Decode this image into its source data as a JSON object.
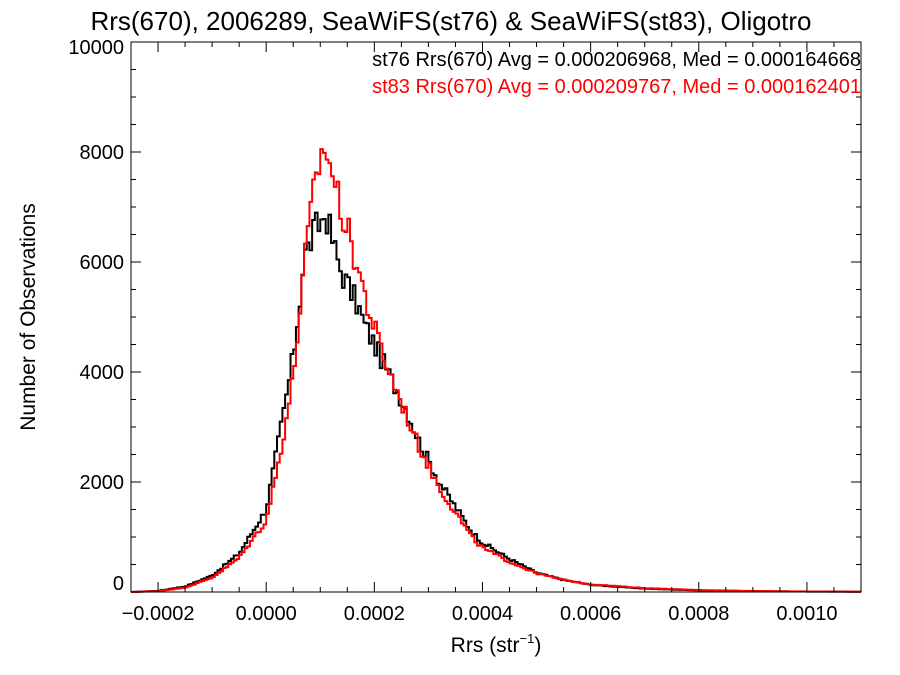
{
  "chart_data": {
    "type": "line",
    "title": "Rrs(670), 2006289, SeaWiFS(st76) & SeaWiFS(st83), Oligotro",
    "xlabel_main": "Rrs (str",
    "xlabel_sup": "−1",
    "xlabel_end": ")",
    "ylabel": "Number of Observations",
    "xlim": [
      -0.00025,
      0.0011
    ],
    "ylim": [
      0,
      10000
    ],
    "x_ticks": [
      -0.0002,
      0.0,
      0.0002,
      0.0004,
      0.0006,
      0.0008,
      0.001
    ],
    "x_tick_labels": [
      "−0.0002",
      "0.0000",
      "0.0002",
      "0.0004",
      "0.0006",
      "0.0008",
      "0.0010"
    ],
    "y_ticks": [
      0,
      2000,
      4000,
      6000,
      8000,
      10000
    ],
    "y_tick_labels": [
      "0",
      "2000",
      "4000",
      "6000",
      "8000",
      "10000"
    ],
    "grid": false,
    "legend_position": "top-right",
    "series": [
      {
        "name": "st76 Rrs(670) Avg = 0.000206968, Med = 0.000164668",
        "color": "#000000",
        "x": [
          -0.00025,
          -0.0002,
          -0.00015,
          -0.0001,
          -5e-05,
          0.0,
          2e-05,
          4e-05,
          5e-05,
          6e-05,
          7e-05,
          8e-05,
          9e-05,
          0.0001,
          0.00011,
          0.00012,
          0.00013,
          0.00014,
          0.00015,
          0.00016,
          0.00017,
          0.00018,
          0.00019,
          0.0002,
          0.00022,
          0.00024,
          0.00026,
          0.00028,
          0.0003,
          0.00032,
          0.00034,
          0.00036,
          0.00038,
          0.0004,
          0.00045,
          0.0005,
          0.00055,
          0.0006,
          0.0007,
          0.0008,
          0.0009,
          0.001,
          0.0011
        ],
        "y": [
          0,
          20,
          100,
          300,
          700,
          1500,
          2600,
          3700,
          4300,
          5100,
          6100,
          6300,
          6600,
          6700,
          6900,
          6500,
          6100,
          5800,
          5600,
          5400,
          5200,
          4900,
          4700,
          4500,
          4100,
          3700,
          3300,
          2800,
          2400,
          2000,
          1700,
          1400,
          1100,
          900,
          600,
          350,
          220,
          130,
          60,
          30,
          15,
          8,
          5
        ]
      },
      {
        "name": "st83 Rrs(670) Avg = 0.000209767, Med = 0.000162401",
        "color": "#ff0000",
        "x": [
          -0.00025,
          -0.0002,
          -0.00015,
          -0.0001,
          -5e-05,
          0.0,
          2e-05,
          4e-05,
          5e-05,
          6e-05,
          7e-05,
          8e-05,
          9e-05,
          0.0001,
          0.00011,
          0.00012,
          0.00013,
          0.00014,
          0.00015,
          0.00016,
          0.00017,
          0.00018,
          0.00019,
          0.0002,
          0.00022,
          0.00024,
          0.00026,
          0.00028,
          0.0003,
          0.00032,
          0.00034,
          0.00036,
          0.00038,
          0.0004,
          0.00045,
          0.0005,
          0.00055,
          0.0006,
          0.0007,
          0.0008,
          0.0009,
          0.001,
          0.0011
        ],
        "y": [
          0,
          15,
          80,
          260,
          620,
          1300,
          2200,
          3300,
          3900,
          4900,
          5900,
          6700,
          7400,
          7900,
          8100,
          7700,
          7300,
          6900,
          6600,
          6200,
          5900,
          5500,
          5100,
          4800,
          4200,
          3700,
          3200,
          2700,
          2300,
          1900,
          1600,
          1300,
          1000,
          800,
          550,
          340,
          220,
          140,
          70,
          35,
          18,
          10,
          5
        ]
      }
    ]
  }
}
